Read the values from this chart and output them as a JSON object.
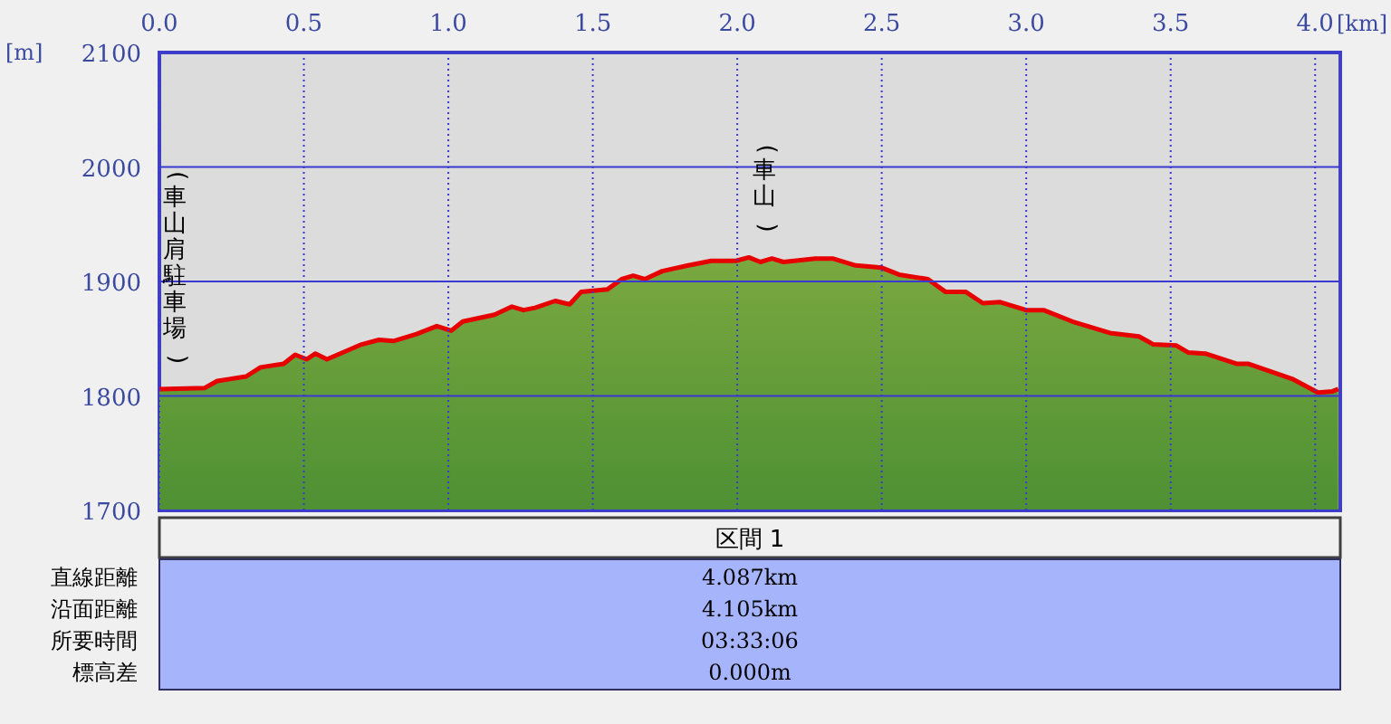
{
  "chart_data": {
    "type": "area",
    "xlabel": "[km]",
    "ylabel": "[m]",
    "xlim": [
      0,
      4.087
    ],
    "ylim": [
      1700,
      2100
    ],
    "xticks": [
      {
        "value": 0,
        "label": "0.0"
      },
      0.5,
      {
        "value": 1,
        "label": "1.0"
      },
      1.5,
      {
        "value": 2,
        "label": "2.0"
      },
      2.5,
      {
        "value": 3,
        "label": "3.0"
      },
      3.5,
      {
        "value": 4,
        "label": "4.0"
      }
    ],
    "yticks": [
      1700,
      1800,
      1900,
      2000,
      2100
    ],
    "grid": true,
    "series": [
      {
        "color": "#e60000",
        "x": [
          0,
          0.157,
          0.2,
          0.3,
          0.35,
          0.43,
          0.47,
          0.51,
          0.54,
          0.58,
          0.7,
          0.76,
          0.81,
          0.89,
          0.96,
          1.01,
          1.05,
          1.16,
          1.22,
          1.26,
          1.3,
          1.37,
          1.42,
          1.46,
          1.55,
          1.6,
          1.64,
          1.68,
          1.74,
          1.83,
          1.91,
          1.995,
          2.04,
          2.08,
          2.12,
          2.16,
          2.27,
          2.33,
          2.41,
          2.5,
          2.56,
          2.66,
          2.72,
          2.79,
          2.85,
          2.91,
          3.0,
          3.06,
          3.16,
          3.29,
          3.39,
          3.44,
          3.52,
          3.56,
          3.62,
          3.73,
          3.77,
          3.92,
          4.01,
          4.06,
          4.08
        ],
        "values": [
          1806,
          1807,
          1813,
          1817,
          1825,
          1828,
          1836,
          1832,
          1837,
          1832,
          1845,
          1849,
          1848,
          1854,
          1861,
          1857,
          1865,
          1871,
          1878,
          1875,
          1877,
          1883,
          1880,
          1891,
          1893,
          1902,
          1905,
          1902,
          1909,
          1914,
          1918,
          1918,
          1921,
          1917,
          1920,
          1917,
          1920,
          1920,
          1914,
          1912,
          1906,
          1902,
          1891,
          1891,
          1881,
          1882,
          1875,
          1875,
          1865,
          1855,
          1852,
          1845,
          1844,
          1838,
          1837,
          1828,
          1828,
          1815,
          1803,
          1804,
          1806
        ]
      }
    ],
    "annotations": [
      {
        "text": "(車山肩駐車場)",
        "x": 0,
        "y": 1806
      },
      {
        "text": "(車山)",
        "x": 2.04,
        "y": 1921
      },
      "区間 1",
      "直線距離",
      "4.087km",
      "沿面距離",
      "4.105km",
      "所要時間",
      "03:33:06",
      "標高差",
      "0.000m"
    ]
  }
}
